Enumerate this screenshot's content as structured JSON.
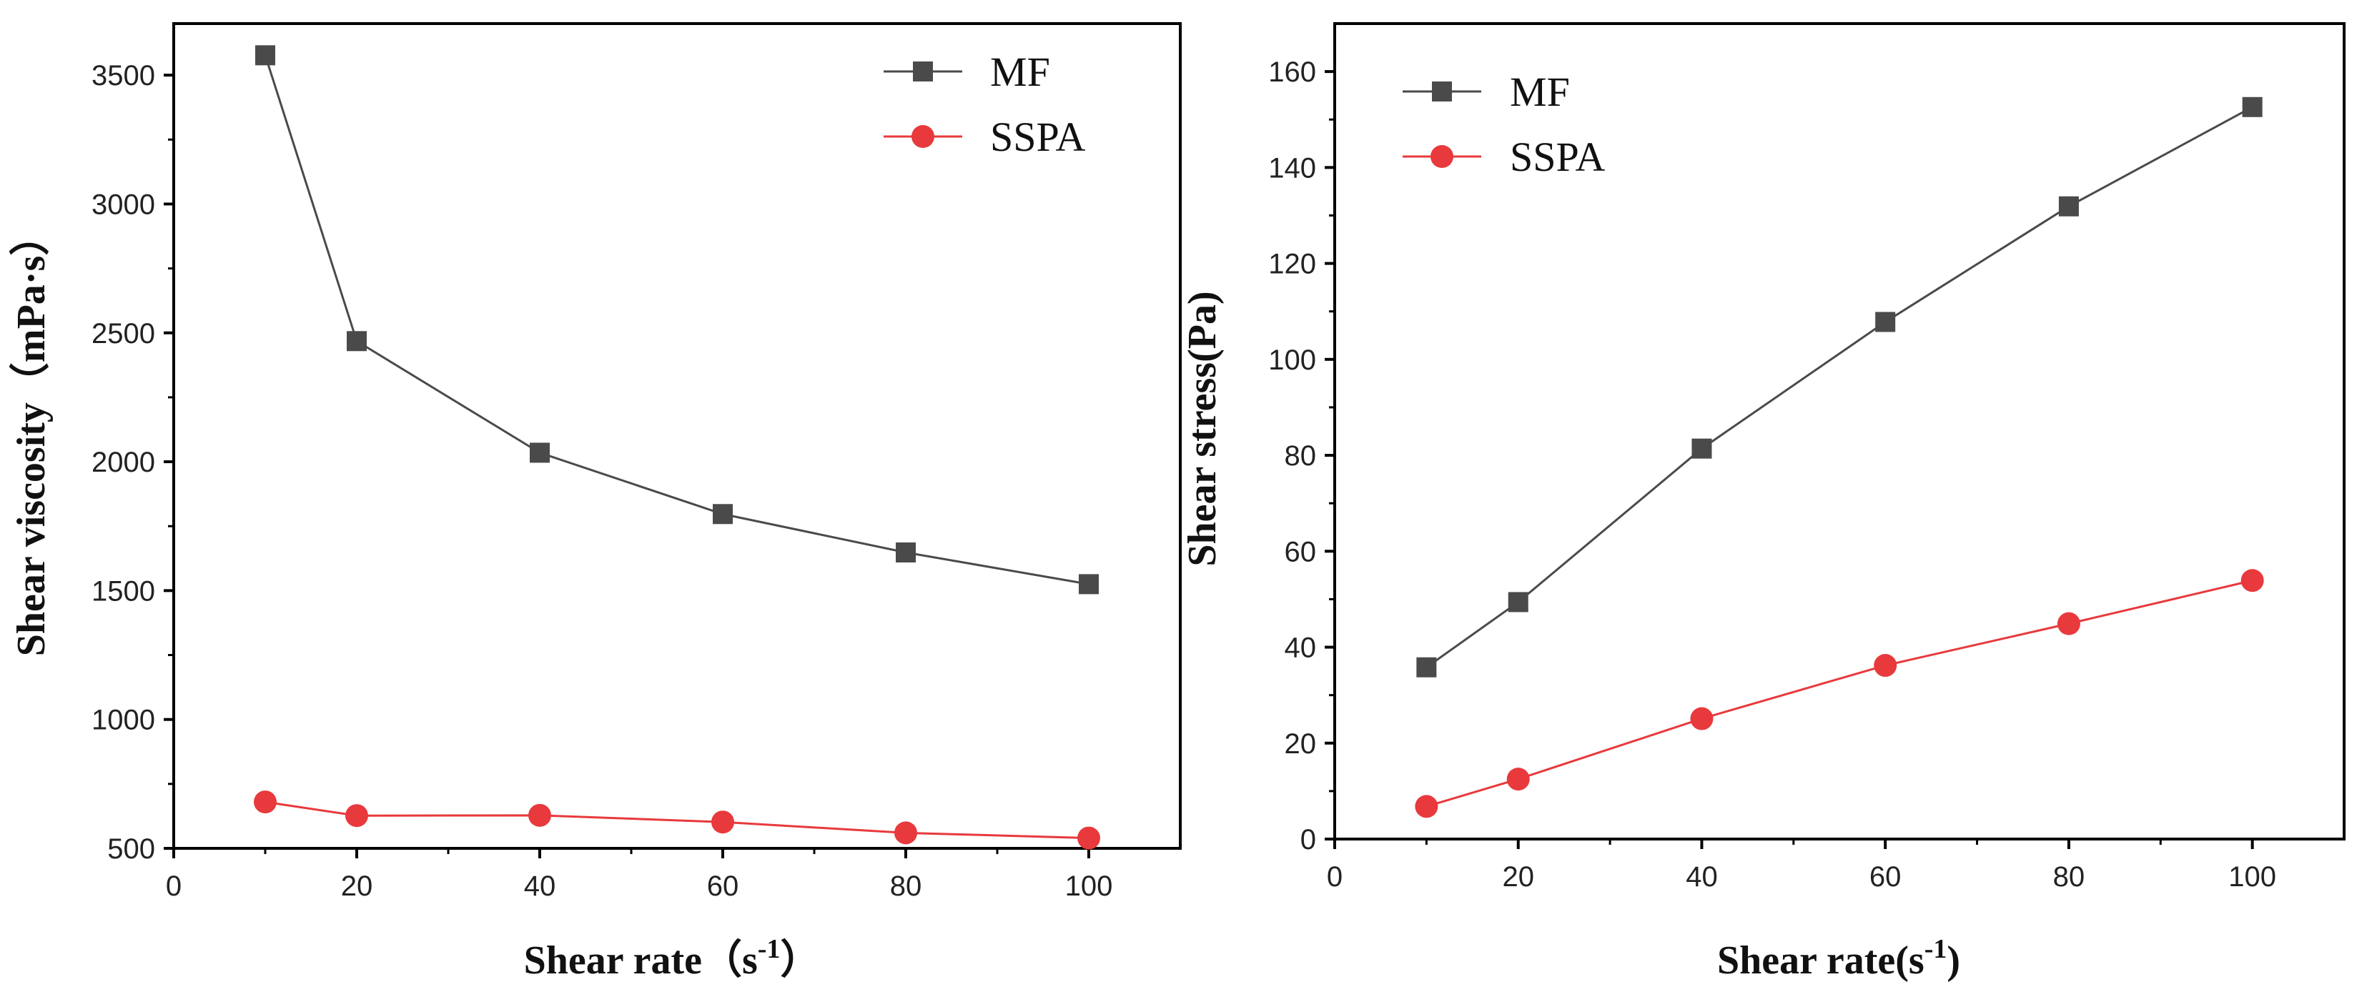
{
  "chart_data": [
    {
      "type": "line",
      "title": "",
      "xlabel": "Shear rate（s",
      "xlabel_sup": "-1",
      "xlabel_suffix": "）",
      "ylabel": "Shear viscosity（mPa·s）",
      "xlim": [
        0,
        110
      ],
      "ylim": [
        500,
        3700
      ],
      "x_ticks": [
        0,
        20,
        40,
        60,
        80,
        100
      ],
      "y_ticks": [
        500,
        1000,
        1500,
        2000,
        2500,
        3000,
        3500
      ],
      "x_tick_labels": [
        "0",
        "20",
        "40",
        "60",
        "80",
        "100"
      ],
      "y_tick_labels": [
        "500",
        "1000",
        "1500",
        "2000",
        "2500",
        "3000",
        "3500"
      ],
      "legend_position": "top-right",
      "grid": false,
      "series": [
        {
          "name": "MF",
          "marker": "square",
          "color": "#4a4a4a",
          "x": [
            10,
            20,
            40,
            60,
            80,
            100
          ],
          "values": [
            3577,
            2468,
            2035,
            1797,
            1648,
            1525
          ]
        },
        {
          "name": "SSPA",
          "marker": "circle",
          "color": "#e8393c",
          "x": [
            10,
            20,
            40,
            60,
            80,
            100
          ],
          "values": [
            680,
            627,
            628,
            602,
            560,
            540
          ]
        }
      ]
    },
    {
      "type": "line",
      "title": "",
      "xlabel": "Shear rate(s",
      "xlabel_sup": "-1",
      "xlabel_suffix": ")",
      "ylabel": "Shear stress(Pa)",
      "xlim": [
        0,
        110
      ],
      "ylim": [
        0,
        170
      ],
      "x_ticks": [
        0,
        20,
        40,
        60,
        80,
        100
      ],
      "y_ticks": [
        0,
        20,
        40,
        60,
        80,
        100,
        120,
        140,
        160
      ],
      "x_tick_labels": [
        "0",
        "20",
        "40",
        "60",
        "80",
        "100"
      ],
      "y_tick_labels": [
        "0",
        "20",
        "40",
        "60",
        "80",
        "100",
        "120",
        "140",
        "160"
      ],
      "legend_position": "top-left",
      "grid": false,
      "series": [
        {
          "name": "MF",
          "marker": "square",
          "color": "#4a4a4a",
          "x": [
            10,
            20,
            40,
            60,
            80,
            100
          ],
          "values": [
            35.8,
            49.4,
            81.4,
            107.8,
            131.9,
            152.6
          ]
        },
        {
          "name": "SSPA",
          "marker": "circle",
          "color": "#e8393c",
          "x": [
            10,
            20,
            40,
            60,
            80,
            100
          ],
          "values": [
            6.8,
            12.5,
            25.1,
            36.2,
            44.9,
            53.9
          ]
        }
      ]
    }
  ]
}
